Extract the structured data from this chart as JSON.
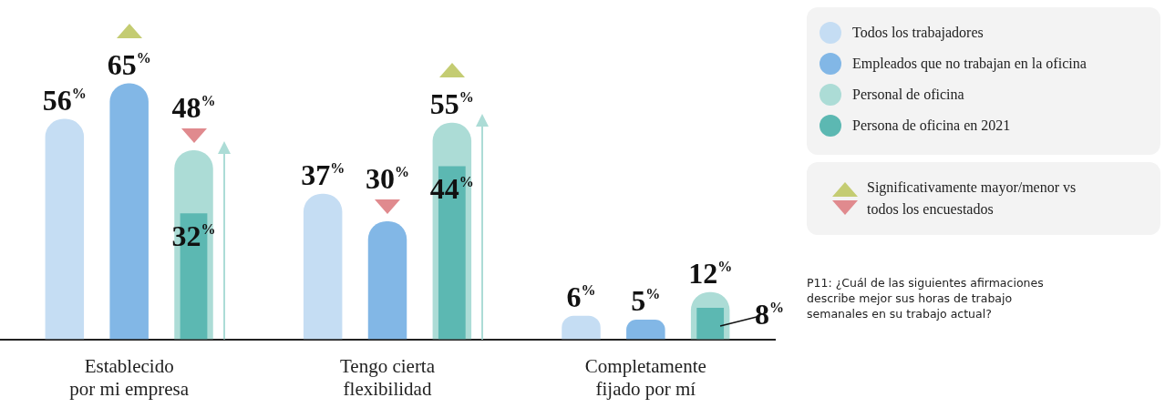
{
  "chart_data": {
    "type": "bar",
    "categories": [
      "Establecido por mi empresa",
      "Tengo cierta flexibilidad",
      "Completamente fijado por mí"
    ],
    "series": [
      {
        "name": "Todos los trabajadores",
        "color": "#c5ddf3",
        "values": [
          56,
          37,
          6
        ],
        "value_labels": [
          "56%",
          "37%",
          "6%"
        ]
      },
      {
        "name": "Empleados que no trabajan en la oficina",
        "color": "#82b7e6",
        "values": [
          65,
          30,
          5
        ],
        "value_labels": [
          "65%",
          "30%",
          "5%"
        ]
      },
      {
        "name": "Personal de oficina",
        "color": "#acdcd6",
        "values": [
          48,
          55,
          12
        ],
        "value_labels": [
          "48%",
          "55%",
          "12%"
        ]
      },
      {
        "name": "Persona de oficina en 2021",
        "color": "#5cb8b2",
        "values": [
          32,
          44,
          8
        ],
        "value_labels": [
          "32%",
          "44%",
          "8%"
        ]
      }
    ],
    "legend": "top right",
    "grid": false,
    "annotations": [
      "Significativamente mayor/menor vs todos los encuestados",
      "P11: ¿Cuál de las siguientes afirmaciones describe mejor sus horas de trabajo semanales en su trabajo actual?"
    ]
  }
}
